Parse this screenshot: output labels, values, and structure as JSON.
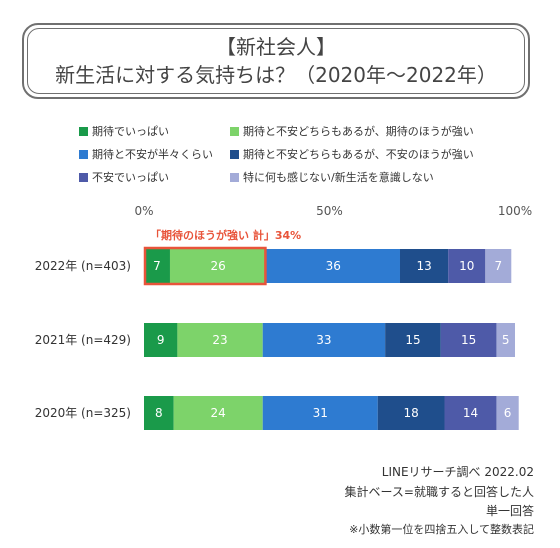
{
  "title": {
    "line1": "【新社会人】",
    "line2": "新生活に対する気持ちは？（2020年～2022年）"
  },
  "chart_data": {
    "type": "bar",
    "orientation": "horizontal",
    "stacked": true,
    "xlim": [
      0,
      100
    ],
    "x_ticks": [
      "0%",
      "50%",
      "100%"
    ],
    "categories": [
      "2022年 (n=403)",
      "2021年 (n=429)",
      "2020年 (n=325)"
    ],
    "series": [
      {
        "name": "期待でいっぱい",
        "color": "#1a9a4a",
        "values": [
          7,
          9,
          8
        ]
      },
      {
        "name": "期待と不安どちらもあるが、期待のほうが強い",
        "color": "#7dd36a",
        "values": [
          26,
          23,
          24
        ]
      },
      {
        "name": "期待と不安が半々くらい",
        "color": "#2e7bd1",
        "values": [
          36,
          33,
          31
        ]
      },
      {
        "name": "期待と不安どちらもあるが、不安のほうが強い",
        "color": "#1f4e8c",
        "values": [
          13,
          15,
          18
        ]
      },
      {
        "name": "不安でいっぱい",
        "color": "#4e5aa8",
        "values": [
          10,
          15,
          14
        ]
      },
      {
        "name": "特に何も感じない/新生活を意識しない",
        "color": "#a3abd8",
        "values": [
          7,
          5,
          6
        ]
      }
    ],
    "annotation": {
      "text": "「期待のほうが強い 計」34%",
      "category_index": 0,
      "series_indices": [
        0,
        1
      ],
      "color": "#e8543a"
    },
    "grid": false,
    "legend_position": "top"
  },
  "notes": [
    "LINEリサーチ調べ 2022.02",
    "集計ベース=就職すると回答した人",
    "単一回答",
    "※小数第一位を四捨五入して整数表記"
  ]
}
